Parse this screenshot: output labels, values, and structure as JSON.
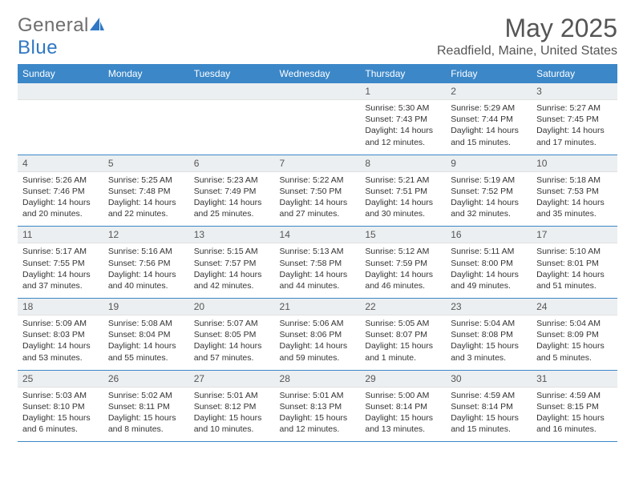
{
  "brand": {
    "text1": "General",
    "text2": "Blue"
  },
  "title": "May 2025",
  "location": "Readfield, Maine, United States",
  "colors": {
    "accent": "#3b87c8",
    "daynum_bg": "#eceff1",
    "text": "#555555"
  },
  "dow": [
    "Sunday",
    "Monday",
    "Tuesday",
    "Wednesday",
    "Thursday",
    "Friday",
    "Saturday"
  ],
  "weeks": [
    [
      {
        "n": "",
        "sr": "",
        "ss": "",
        "dl": ""
      },
      {
        "n": "",
        "sr": "",
        "ss": "",
        "dl": ""
      },
      {
        "n": "",
        "sr": "",
        "ss": "",
        "dl": ""
      },
      {
        "n": "",
        "sr": "",
        "ss": "",
        "dl": ""
      },
      {
        "n": "1",
        "sr": "Sunrise: 5:30 AM",
        "ss": "Sunset: 7:43 PM",
        "dl": "Daylight: 14 hours and 12 minutes."
      },
      {
        "n": "2",
        "sr": "Sunrise: 5:29 AM",
        "ss": "Sunset: 7:44 PM",
        "dl": "Daylight: 14 hours and 15 minutes."
      },
      {
        "n": "3",
        "sr": "Sunrise: 5:27 AM",
        "ss": "Sunset: 7:45 PM",
        "dl": "Daylight: 14 hours and 17 minutes."
      }
    ],
    [
      {
        "n": "4",
        "sr": "Sunrise: 5:26 AM",
        "ss": "Sunset: 7:46 PM",
        "dl": "Daylight: 14 hours and 20 minutes."
      },
      {
        "n": "5",
        "sr": "Sunrise: 5:25 AM",
        "ss": "Sunset: 7:48 PM",
        "dl": "Daylight: 14 hours and 22 minutes."
      },
      {
        "n": "6",
        "sr": "Sunrise: 5:23 AM",
        "ss": "Sunset: 7:49 PM",
        "dl": "Daylight: 14 hours and 25 minutes."
      },
      {
        "n": "7",
        "sr": "Sunrise: 5:22 AM",
        "ss": "Sunset: 7:50 PM",
        "dl": "Daylight: 14 hours and 27 minutes."
      },
      {
        "n": "8",
        "sr": "Sunrise: 5:21 AM",
        "ss": "Sunset: 7:51 PM",
        "dl": "Daylight: 14 hours and 30 minutes."
      },
      {
        "n": "9",
        "sr": "Sunrise: 5:19 AM",
        "ss": "Sunset: 7:52 PM",
        "dl": "Daylight: 14 hours and 32 minutes."
      },
      {
        "n": "10",
        "sr": "Sunrise: 5:18 AM",
        "ss": "Sunset: 7:53 PM",
        "dl": "Daylight: 14 hours and 35 minutes."
      }
    ],
    [
      {
        "n": "11",
        "sr": "Sunrise: 5:17 AM",
        "ss": "Sunset: 7:55 PM",
        "dl": "Daylight: 14 hours and 37 minutes."
      },
      {
        "n": "12",
        "sr": "Sunrise: 5:16 AM",
        "ss": "Sunset: 7:56 PM",
        "dl": "Daylight: 14 hours and 40 minutes."
      },
      {
        "n": "13",
        "sr": "Sunrise: 5:15 AM",
        "ss": "Sunset: 7:57 PM",
        "dl": "Daylight: 14 hours and 42 minutes."
      },
      {
        "n": "14",
        "sr": "Sunrise: 5:13 AM",
        "ss": "Sunset: 7:58 PM",
        "dl": "Daylight: 14 hours and 44 minutes."
      },
      {
        "n": "15",
        "sr": "Sunrise: 5:12 AM",
        "ss": "Sunset: 7:59 PM",
        "dl": "Daylight: 14 hours and 46 minutes."
      },
      {
        "n": "16",
        "sr": "Sunrise: 5:11 AM",
        "ss": "Sunset: 8:00 PM",
        "dl": "Daylight: 14 hours and 49 minutes."
      },
      {
        "n": "17",
        "sr": "Sunrise: 5:10 AM",
        "ss": "Sunset: 8:01 PM",
        "dl": "Daylight: 14 hours and 51 minutes."
      }
    ],
    [
      {
        "n": "18",
        "sr": "Sunrise: 5:09 AM",
        "ss": "Sunset: 8:03 PM",
        "dl": "Daylight: 14 hours and 53 minutes."
      },
      {
        "n": "19",
        "sr": "Sunrise: 5:08 AM",
        "ss": "Sunset: 8:04 PM",
        "dl": "Daylight: 14 hours and 55 minutes."
      },
      {
        "n": "20",
        "sr": "Sunrise: 5:07 AM",
        "ss": "Sunset: 8:05 PM",
        "dl": "Daylight: 14 hours and 57 minutes."
      },
      {
        "n": "21",
        "sr": "Sunrise: 5:06 AM",
        "ss": "Sunset: 8:06 PM",
        "dl": "Daylight: 14 hours and 59 minutes."
      },
      {
        "n": "22",
        "sr": "Sunrise: 5:05 AM",
        "ss": "Sunset: 8:07 PM",
        "dl": "Daylight: 15 hours and 1 minute."
      },
      {
        "n": "23",
        "sr": "Sunrise: 5:04 AM",
        "ss": "Sunset: 8:08 PM",
        "dl": "Daylight: 15 hours and 3 minutes."
      },
      {
        "n": "24",
        "sr": "Sunrise: 5:04 AM",
        "ss": "Sunset: 8:09 PM",
        "dl": "Daylight: 15 hours and 5 minutes."
      }
    ],
    [
      {
        "n": "25",
        "sr": "Sunrise: 5:03 AM",
        "ss": "Sunset: 8:10 PM",
        "dl": "Daylight: 15 hours and 6 minutes."
      },
      {
        "n": "26",
        "sr": "Sunrise: 5:02 AM",
        "ss": "Sunset: 8:11 PM",
        "dl": "Daylight: 15 hours and 8 minutes."
      },
      {
        "n": "27",
        "sr": "Sunrise: 5:01 AM",
        "ss": "Sunset: 8:12 PM",
        "dl": "Daylight: 15 hours and 10 minutes."
      },
      {
        "n": "28",
        "sr": "Sunrise: 5:01 AM",
        "ss": "Sunset: 8:13 PM",
        "dl": "Daylight: 15 hours and 12 minutes."
      },
      {
        "n": "29",
        "sr": "Sunrise: 5:00 AM",
        "ss": "Sunset: 8:14 PM",
        "dl": "Daylight: 15 hours and 13 minutes."
      },
      {
        "n": "30",
        "sr": "Sunrise: 4:59 AM",
        "ss": "Sunset: 8:14 PM",
        "dl": "Daylight: 15 hours and 15 minutes."
      },
      {
        "n": "31",
        "sr": "Sunrise: 4:59 AM",
        "ss": "Sunset: 8:15 PM",
        "dl": "Daylight: 15 hours and 16 minutes."
      }
    ]
  ]
}
